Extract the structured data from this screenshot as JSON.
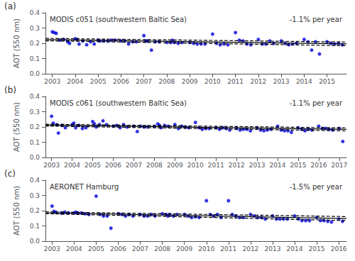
{
  "chart_data": [
    {
      "type": "scatter",
      "title": "MODIS c051 (southwestern Baltic Sea)",
      "annotations": [
        "(a)",
        "-1.1% per year"
      ],
      "ylabel": "AOT (550 nm)",
      "xlim": [
        2002.7,
        2015.85
      ],
      "xticks": [
        2003,
        2004,
        2005,
        2006,
        2007,
        2008,
        2009,
        2010,
        2011,
        2012,
        2013,
        2014,
        2015
      ],
      "ylim": [
        0,
        0.4
      ],
      "yticks": [
        {
          "value": 0,
          "label": "0.0"
        },
        0.1,
        0.2,
        0.3,
        0.4
      ],
      "grid": false,
      "series": [
        {
          "type": "scatter",
          "color": "#0000dd",
          "marker": "circle",
          "x": [
            2003.0,
            2003.08,
            2003.17,
            2003.33,
            2003.5,
            2003.67,
            2003.75,
            2004.0,
            2004.08,
            2004.17,
            2004.33,
            2004.5,
            2004.67,
            2004.83,
            2005.0,
            2005.08,
            2005.25,
            2005.42,
            2005.58,
            2005.75,
            2006.0,
            2006.17,
            2006.33,
            2006.5,
            2006.67,
            2007.0,
            2007.08,
            2007.17,
            2007.33,
            2007.5,
            2007.67,
            2008.0,
            2008.17,
            2008.25,
            2008.33,
            2008.5,
            2008.67,
            2009.0,
            2009.17,
            2009.33,
            2009.5,
            2009.67,
            2010.0,
            2010.17,
            2010.33,
            2010.5,
            2010.67,
            2011.0,
            2011.17,
            2011.33,
            2011.5,
            2011.67,
            2012.0,
            2012.17,
            2012.33,
            2012.5,
            2012.67,
            2013.0,
            2013.17,
            2013.33,
            2013.5,
            2013.67,
            2014.0,
            2014.17,
            2014.33,
            2014.5,
            2014.67,
            2015.0,
            2015.17,
            2015.33,
            2015.5,
            2015.67
          ],
          "values": [
            0.275,
            0.27,
            0.265,
            0.22,
            0.225,
            0.21,
            0.2,
            0.23,
            0.225,
            0.195,
            0.215,
            0.19,
            0.21,
            0.195,
            0.22,
            0.215,
            0.215,
            0.215,
            0.22,
            0.22,
            0.215,
            0.215,
            0.195,
            0.21,
            0.21,
            0.25,
            0.215,
            0.215,
            0.155,
            0.21,
            0.21,
            0.205,
            0.205,
            0.22,
            0.205,
            0.2,
            0.205,
            0.205,
            0.2,
            0.195,
            0.195,
            0.195,
            0.26,
            0.2,
            0.19,
            0.195,
            0.19,
            0.27,
            0.22,
            0.215,
            0.195,
            0.19,
            0.225,
            0.195,
            0.195,
            0.215,
            0.2,
            0.215,
            0.2,
            0.19,
            0.195,
            0.2,
            0.225,
            0.21,
            0.155,
            0.21,
            0.13,
            0.21,
            0.2,
            0.195,
            0.2,
            0.19
          ]
        },
        {
          "type": "line",
          "color": "#000000",
          "line_style": "solid",
          "x": [
            2002.7,
            2015.85
          ],
          "values": [
            0.224,
            0.196
          ]
        },
        {
          "type": "line",
          "color": "#000000",
          "line_style": "dashed",
          "x": [
            2002.7,
            2015.85
          ],
          "values": [
            0.232,
            0.208
          ]
        },
        {
          "type": "line",
          "color": "#000000",
          "line_style": "dashed",
          "x": [
            2002.7,
            2015.85
          ],
          "values": [
            0.216,
            0.184
          ]
        }
      ]
    },
    {
      "type": "scatter",
      "title": "MODIS c061 (southwestern Baltic Sea)",
      "annotations": [
        "(b)",
        "-1.1% per year"
      ],
      "ylabel": "AOT (550 nm)",
      "xlim": [
        2002.7,
        2017.35
      ],
      "xticks": [
        2003,
        2004,
        2005,
        2006,
        2007,
        2008,
        2009,
        2010,
        2011,
        2012,
        2013,
        2014,
        2015,
        2016,
        2017
      ],
      "ylim": [
        0,
        0.4
      ],
      "yticks": [
        {
          "value": 0,
          "label": "0.0"
        },
        0.1,
        0.2,
        0.3,
        0.4
      ],
      "grid": false,
      "series": [
        {
          "type": "scatter",
          "color": "#0000dd",
          "marker": "circle",
          "x": [
            2003.0,
            2003.08,
            2003.25,
            2003.33,
            2003.5,
            2003.67,
            2004.0,
            2004.08,
            2004.17,
            2004.33,
            2004.5,
            2004.67,
            2005.0,
            2005.08,
            2005.17,
            2005.33,
            2005.5,
            2005.67,
            2006.0,
            2006.17,
            2006.33,
            2006.5,
            2006.67,
            2007.0,
            2007.17,
            2007.33,
            2007.5,
            2007.67,
            2008.0,
            2008.17,
            2008.25,
            2008.33,
            2008.5,
            2008.67,
            2009.0,
            2009.17,
            2009.33,
            2009.5,
            2009.67,
            2010.0,
            2010.17,
            2010.33,
            2010.5,
            2010.67,
            2011.0,
            2011.17,
            2011.33,
            2011.5,
            2011.67,
            2012.0,
            2012.17,
            2012.33,
            2012.5,
            2012.67,
            2013.0,
            2013.17,
            2013.33,
            2013.5,
            2013.67,
            2014.0,
            2014.17,
            2014.33,
            2014.5,
            2014.67,
            2015.0,
            2015.17,
            2015.33,
            2015.5,
            2015.67,
            2016.0,
            2016.17,
            2016.33,
            2016.5,
            2016.67,
            2017.0,
            2017.17
          ],
          "values": [
            0.27,
            0.225,
            0.215,
            0.16,
            0.21,
            0.195,
            0.215,
            0.225,
            0.195,
            0.21,
            0.19,
            0.195,
            0.235,
            0.22,
            0.2,
            0.215,
            0.24,
            0.215,
            0.205,
            0.21,
            0.195,
            0.215,
            0.2,
            0.205,
            0.17,
            0.205,
            0.2,
            0.2,
            0.205,
            0.22,
            0.21,
            0.195,
            0.21,
            0.205,
            0.215,
            0.19,
            0.205,
            0.2,
            0.195,
            0.23,
            0.195,
            0.185,
            0.19,
            0.19,
            0.195,
            0.185,
            0.195,
            0.19,
            0.18,
            0.19,
            0.18,
            0.185,
            0.185,
            0.175,
            0.195,
            0.18,
            0.175,
            0.18,
            0.185,
            0.205,
            0.18,
            0.175,
            0.175,
            0.165,
            0.195,
            0.185,
            0.175,
            0.185,
            0.18,
            0.205,
            0.19,
            0.19,
            0.185,
            0.18,
            0.19,
            0.105
          ]
        },
        {
          "type": "line",
          "color": "#000000",
          "line_style": "solid",
          "x": [
            2002.7,
            2017.35
          ],
          "values": [
            0.212,
            0.184
          ]
        },
        {
          "type": "line",
          "color": "#000000",
          "line_style": "dashed",
          "x": [
            2002.7,
            2017.35
          ],
          "values": [
            0.218,
            0.194
          ]
        },
        {
          "type": "line",
          "color": "#000000",
          "line_style": "dashed",
          "x": [
            2002.7,
            2017.35
          ],
          "values": [
            0.206,
            0.174
          ]
        }
      ]
    },
    {
      "type": "scatter",
      "title": "AERONET Hamburg",
      "annotations": [
        "(c)",
        "-1.5% per year"
      ],
      "ylabel": "AOT (550 nm)",
      "xlim": [
        2002.7,
        2016.35
      ],
      "xticks": [
        2003,
        2004,
        2005,
        2006,
        2007,
        2008,
        2009,
        2010,
        2011,
        2012,
        2013,
        2014,
        2015,
        2016
      ],
      "ylim": [
        0,
        0.4
      ],
      "yticks": [
        {
          "value": 0,
          "label": "0.0"
        },
        0.1,
        0.2,
        0.3,
        0.4
      ],
      "grid": false,
      "series": [
        {
          "type": "scatter",
          "color": "#0000dd",
          "marker": "circle",
          "x": [
            2003.0,
            2003.08,
            2003.17,
            2003.42,
            2003.5,
            2003.58,
            2003.75,
            2004.0,
            2004.08,
            2004.17,
            2004.33,
            2004.5,
            2004.67,
            2005.0,
            2005.17,
            2005.33,
            2005.5,
            2005.67,
            2006.0,
            2006.17,
            2006.33,
            2006.5,
            2006.67,
            2007.0,
            2007.17,
            2007.33,
            2007.5,
            2007.67,
            2008.0,
            2008.17,
            2008.25,
            2008.33,
            2008.5,
            2008.67,
            2009.0,
            2009.17,
            2009.33,
            2009.5,
            2009.67,
            2010.0,
            2010.17,
            2010.33,
            2010.5,
            2010.67,
            2011.0,
            2011.17,
            2011.33,
            2011.5,
            2011.67,
            2012.0,
            2012.17,
            2012.33,
            2012.5,
            2012.67,
            2013.0,
            2013.17,
            2013.33,
            2013.5,
            2013.67,
            2014.0,
            2014.17,
            2014.33,
            2014.5,
            2014.67,
            2015.0,
            2015.17,
            2015.33,
            2015.5,
            2015.67,
            2016.0,
            2016.17
          ],
          "values": [
            0.23,
            0.195,
            0.19,
            0.185,
            0.185,
            0.19,
            0.185,
            0.185,
            0.19,
            0.185,
            0.185,
            0.18,
            0.175,
            0.295,
            0.175,
            0.165,
            0.165,
            0.085,
            0.18,
            0.175,
            0.165,
            0.175,
            0.165,
            0.175,
            0.165,
            0.165,
            0.175,
            0.165,
            0.18,
            0.175,
            0.165,
            0.175,
            0.165,
            0.175,
            0.175,
            0.165,
            0.155,
            0.16,
            0.155,
            0.265,
            0.175,
            0.165,
            0.175,
            0.155,
            0.265,
            0.175,
            0.165,
            0.155,
            0.155,
            0.175,
            0.165,
            0.155,
            0.155,
            0.145,
            0.165,
            0.145,
            0.145,
            0.145,
            0.145,
            0.165,
            0.145,
            0.135,
            0.135,
            0.135,
            0.155,
            0.135,
            0.135,
            0.13,
            0.125,
            0.145,
            0.13
          ]
        },
        {
          "type": "line",
          "color": "#000000",
          "line_style": "solid",
          "x": [
            2002.7,
            2016.35
          ],
          "values": [
            0.186,
            0.148
          ]
        },
        {
          "type": "line",
          "color": "#000000",
          "line_style": "dashed",
          "x": [
            2002.7,
            2016.35
          ],
          "values": [
            0.192,
            0.161
          ]
        },
        {
          "type": "line",
          "color": "#000000",
          "line_style": "dashed",
          "x": [
            2002.7,
            2016.35
          ],
          "values": [
            0.18,
            0.135
          ]
        }
      ]
    }
  ]
}
